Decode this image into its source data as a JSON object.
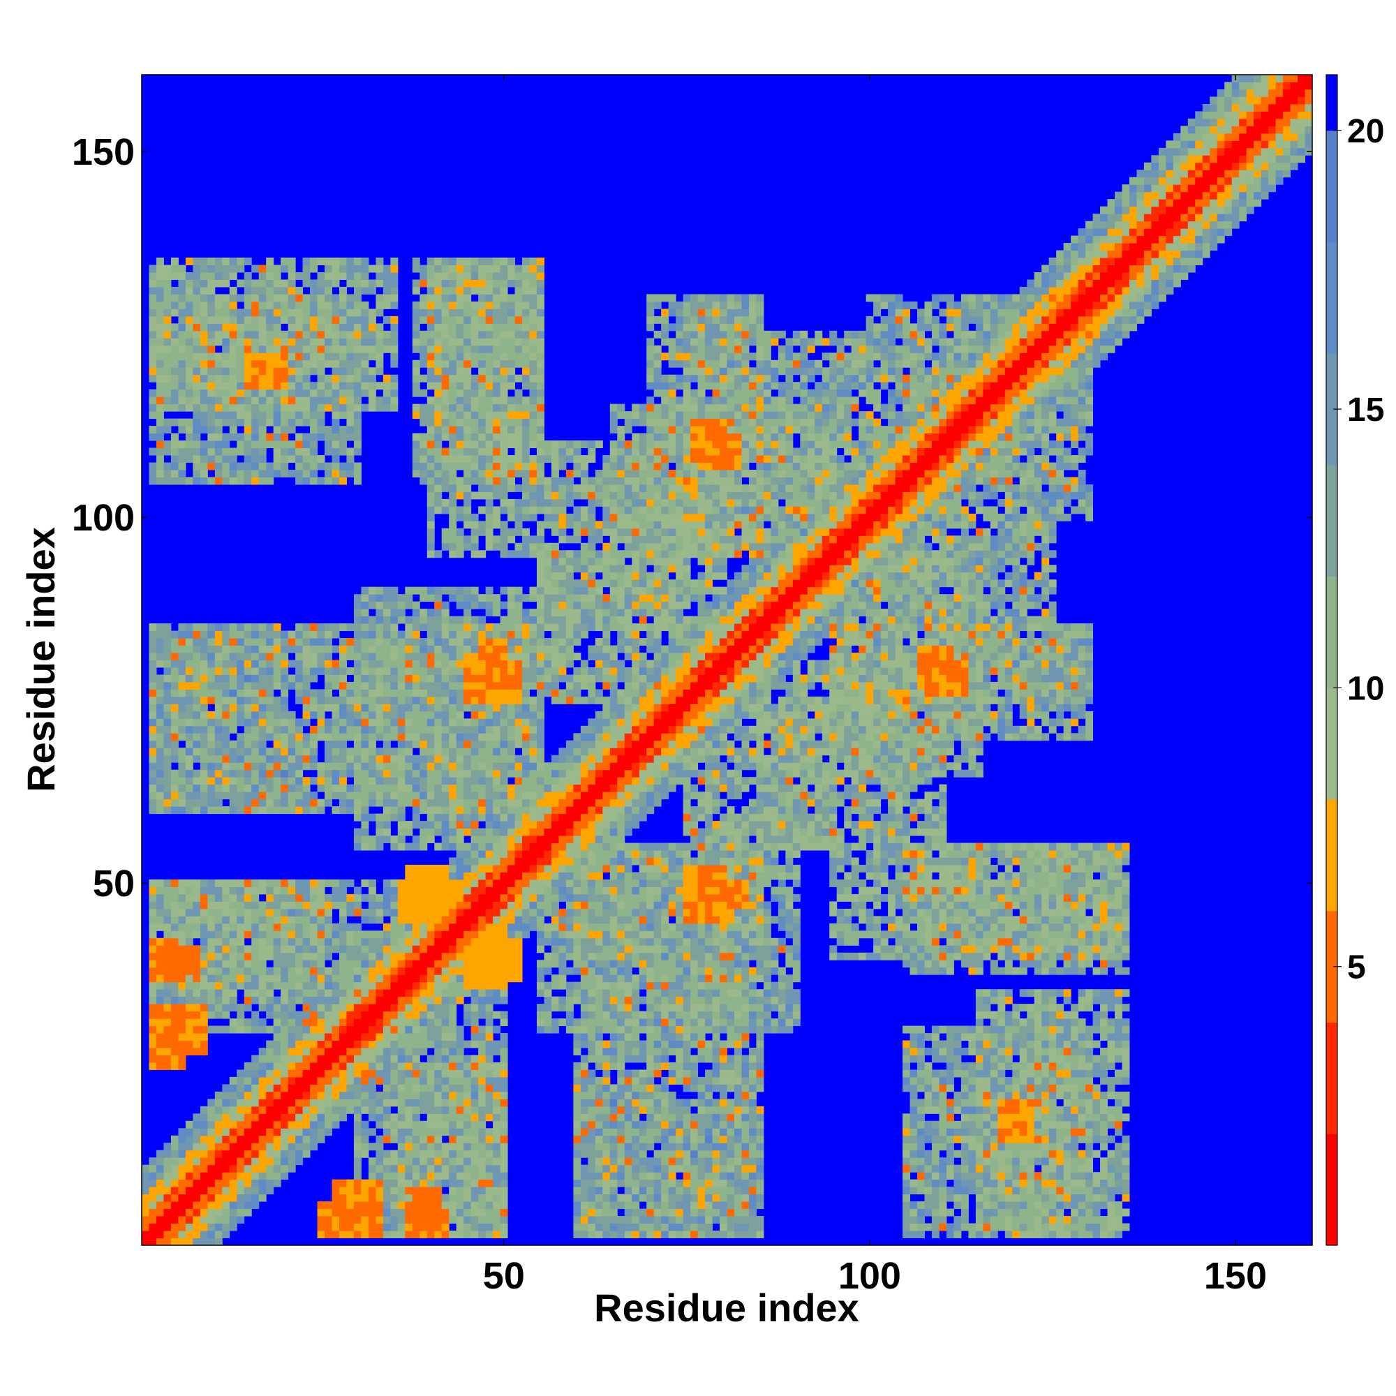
{
  "chart_data": {
    "type": "heatmap",
    "title": "",
    "xlabel": "Residue index",
    "ylabel": "Residue index",
    "x_range": [
      1,
      160
    ],
    "y_range": [
      1,
      160
    ],
    "x_ticks": [
      50,
      100,
      150
    ],
    "y_ticks": [
      50,
      100,
      150
    ],
    "colorbar": {
      "range": [
        0,
        21
      ],
      "ticks": [
        5,
        10,
        15,
        20
      ],
      "levels": [
        {
          "max": 2,
          "color": "#ff0000"
        },
        {
          "max": 4,
          "color": "#ff2a00"
        },
        {
          "max": 6,
          "color": "#ff6a00"
        },
        {
          "max": 8,
          "color": "#ffa500"
        },
        {
          "max": 10,
          "color": "#9bb98a"
        },
        {
          "max": 12,
          "color": "#8fb48c"
        },
        {
          "max": 14,
          "color": "#7fa19c"
        },
        {
          "max": 16,
          "color": "#6f96b3"
        },
        {
          "max": 18,
          "color": "#5f8cc4"
        },
        {
          "max": 20,
          "color": "#5580cc"
        },
        {
          "max": 21,
          "color": "#0000ff"
        }
      ]
    },
    "diagonal_band_width": 4,
    "contact_regions": [
      {
        "x": [
          2,
          35
        ],
        "y": [
          115,
          135
        ],
        "level": 12
      },
      {
        "x": [
          38,
          55
        ],
        "y": [
          105,
          135
        ],
        "level": 12
      },
      {
        "x": [
          70,
          85
        ],
        "y": [
          95,
          130
        ],
        "level": 13
      },
      {
        "x": [
          85,
          130
        ],
        "y": [
          100,
          125
        ],
        "level": 13
      },
      {
        "x": [
          2,
          30
        ],
        "y": [
          60,
          85
        ],
        "level": 13
      },
      {
        "x": [
          30,
          55
        ],
        "y": [
          60,
          90
        ],
        "level": 13
      },
      {
        "x": [
          55,
          80
        ],
        "y": [
          85,
          110
        ],
        "level": 12
      },
      {
        "x": [
          75,
          95
        ],
        "y": [
          55,
          75
        ],
        "level": 12
      },
      {
        "x": [
          95,
          115
        ],
        "y": [
          65,
          95
        ],
        "level": 12
      },
      {
        "x": [
          110,
          130
        ],
        "y": [
          75,
          85
        ],
        "level": 13
      },
      {
        "x": [
          2,
          25
        ],
        "y": [
          35,
          50
        ],
        "level": 12
      },
      {
        "x": [
          30,
          50
        ],
        "y": [
          2,
          35
        ],
        "level": 13
      },
      {
        "x": [
          55,
          85
        ],
        "y": [
          30,
          55
        ],
        "level": 13
      },
      {
        "x": [
          95,
          135
        ],
        "y": [
          40,
          55
        ],
        "level": 12
      },
      {
        "x": [
          105,
          130
        ],
        "y": [
          2,
          30
        ],
        "level": 13
      },
      {
        "x": [
          60,
          85
        ],
        "y": [
          2,
          20
        ],
        "level": 15
      }
    ],
    "close_contacts": [
      {
        "x": [
          37,
          42
        ],
        "y": [
          48,
          52
        ],
        "level": 7
      },
      {
        "x": [
          45,
          50
        ],
        "y": [
          36,
          40
        ],
        "level": 7
      },
      {
        "x": [
          44,
          50
        ],
        "y": [
          40,
          44
        ],
        "level": 7
      },
      {
        "x": [
          3,
          8
        ],
        "y": [
          38,
          41
        ],
        "level": 5
      },
      {
        "x": [
          3,
          9
        ],
        "y": [
          27,
          33
        ],
        "level": 6
      },
      {
        "x": [
          25,
          33
        ],
        "y": [
          2,
          6
        ],
        "level": 6
      },
      {
        "x": [
          37,
          42
        ],
        "y": [
          2,
          5
        ],
        "level": 6
      },
      {
        "x": [
          45,
          52
        ],
        "y": [
          75,
          80
        ],
        "level": 6
      },
      {
        "x": [
          77,
          82
        ],
        "y": [
          107,
          111
        ],
        "level": 6
      },
      {
        "x": [
          108,
          113
        ],
        "y": [
          76,
          80
        ],
        "level": 6
      },
      {
        "x": [
          78,
          83
        ],
        "y": [
          47,
          50
        ],
        "level": 6
      },
      {
        "x": [
          15,
          20
        ],
        "y": [
          118,
          122
        ],
        "level": 6
      }
    ]
  }
}
